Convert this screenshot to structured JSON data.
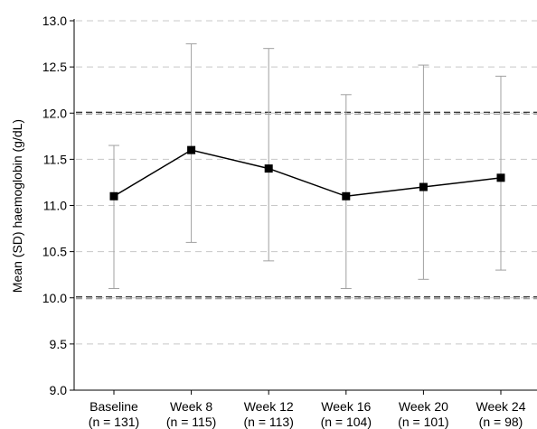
{
  "chart_data": {
    "type": "line",
    "ylabel": "Mean (SD) haemoglobin (g/dL)",
    "ylim": [
      9.0,
      13.0
    ],
    "yticks": [
      "9.0",
      "9.5",
      "10.0",
      "10.5",
      "11.0",
      "11.5",
      "12.0",
      "12.5",
      "13.0"
    ],
    "grid": true,
    "reference_lines": [
      10.0,
      12.0
    ],
    "categories": [
      "Baseline",
      "Week 8",
      "Week 12",
      "Week 16",
      "Week 20",
      "Week 24"
    ],
    "category_n": [
      "(n = 131)",
      "(n = 115)",
      "(n = 113)",
      "(n = 104)",
      "(n = 101)",
      "(n = 98)"
    ],
    "series": [
      {
        "values": [
          11.1,
          11.6,
          11.4,
          11.1,
          11.2,
          11.3
        ],
        "error_low": [
          10.1,
          10.6,
          10.4,
          10.1,
          10.2,
          10.3
        ],
        "error_high": [
          11.65,
          12.75,
          12.7,
          12.2,
          12.52,
          12.4
        ]
      }
    ],
    "colors": {
      "line": "#000000",
      "marker": "#000000",
      "error_bar": "#a0a0a0",
      "grid": "#c8c8c8",
      "reference": "#000000"
    }
  }
}
